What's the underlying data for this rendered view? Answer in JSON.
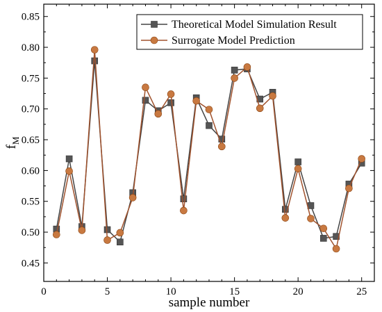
{
  "chart_data": {
    "type": "line",
    "xlabel": "sample number",
    "ylabel_main": "f",
    "ylabel_sub": "M",
    "xlim": [
      0,
      26
    ],
    "ylim": [
      0.42,
      0.87
    ],
    "xticks": [
      "0",
      "5",
      "10",
      "15",
      "20",
      "25"
    ],
    "yticks": [
      "0.45",
      "0.50",
      "0.55",
      "0.60",
      "0.65",
      "0.70",
      "0.75",
      "0.80",
      "0.85"
    ],
    "grid": false,
    "legend_position": "top-right",
    "x": [
      1,
      2,
      3,
      4,
      5,
      6,
      7,
      8,
      9,
      10,
      11,
      12,
      13,
      14,
      15,
      16,
      17,
      18,
      19,
      20,
      21,
      22,
      23,
      24,
      25
    ],
    "series": [
      {
        "name": "Theoretical Model Simulation Result",
        "marker": "square",
        "line_color": "#444444",
        "marker_color": "#555555",
        "values": [
          0.505,
          0.619,
          0.509,
          0.778,
          0.504,
          0.484,
          0.564,
          0.714,
          0.697,
          0.71,
          0.554,
          0.718,
          0.673,
          0.651,
          0.763,
          0.765,
          0.716,
          0.727,
          0.537,
          0.614,
          0.543,
          0.49,
          0.493,
          0.578,
          0.612
        ]
      },
      {
        "name": "Surrogate Model Prediction",
        "marker": "circle",
        "line_color": "#a0522d",
        "marker_color": "#c87941",
        "values": [
          0.496,
          0.599,
          0.503,
          0.796,
          0.487,
          0.499,
          0.556,
          0.735,
          0.692,
          0.724,
          0.535,
          0.713,
          0.699,
          0.639,
          0.75,
          0.768,
          0.701,
          0.721,
          0.523,
          0.603,
          0.522,
          0.506,
          0.473,
          0.571,
          0.619
        ]
      }
    ]
  }
}
